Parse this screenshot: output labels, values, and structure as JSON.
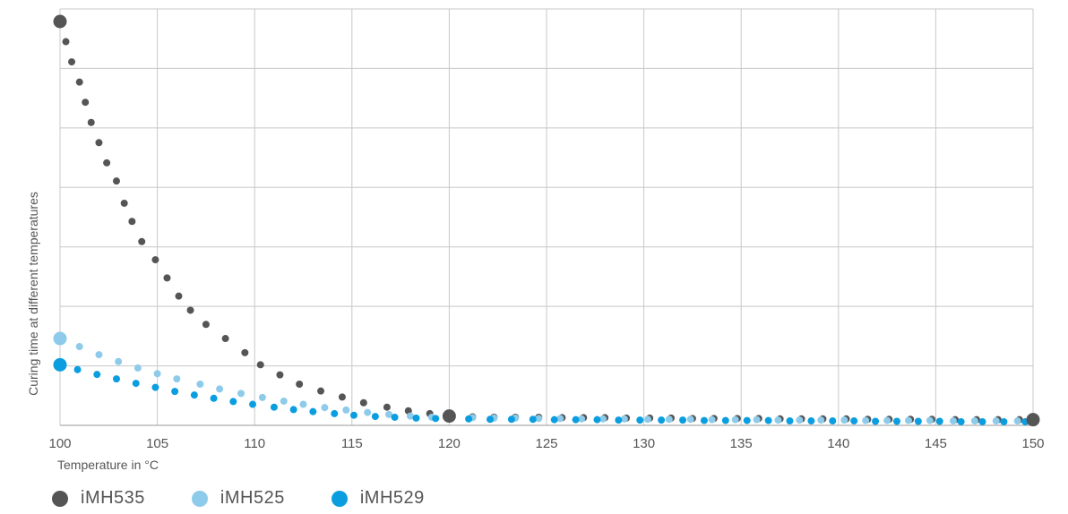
{
  "chart_data": {
    "type": "scatter",
    "title": "",
    "xlabel": "Temperature in °C",
    "ylabel": "Curing time at different temperatures",
    "xlim": [
      100,
      150
    ],
    "ylim": [
      0,
      100
    ],
    "x_ticks": [
      "100",
      "105",
      "110",
      "115",
      "120",
      "125",
      "130",
      "135",
      "140",
      "145",
      "150"
    ],
    "grid": true,
    "legend_position": "bottom-left",
    "series": [
      {
        "name": "iMH535",
        "color": "#555555",
        "points": [
          [
            100,
            100
          ],
          [
            100.3,
            95
          ],
          [
            100.6,
            90
          ],
          [
            101,
            85
          ],
          [
            101.3,
            80
          ],
          [
            101.6,
            75
          ],
          [
            102,
            70
          ],
          [
            102.4,
            65
          ],
          [
            102.9,
            60.5
          ],
          [
            103.3,
            55
          ],
          [
            103.7,
            50.5
          ],
          [
            104.2,
            45.5
          ],
          [
            104.9,
            41
          ],
          [
            105.5,
            36.5
          ],
          [
            106.1,
            32
          ],
          [
            106.7,
            28.5
          ],
          [
            107.5,
            25
          ],
          [
            108.5,
            21.5
          ],
          [
            109.5,
            18
          ],
          [
            110.3,
            15
          ],
          [
            111.3,
            12.5
          ],
          [
            112.3,
            10.2
          ],
          [
            113.4,
            8.5
          ],
          [
            114.5,
            7
          ],
          [
            115.6,
            5.6
          ],
          [
            116.8,
            4.5
          ],
          [
            117.9,
            3.6
          ],
          [
            119,
            2.9
          ],
          [
            120,
            2.3
          ],
          [
            121.2,
            2.1
          ],
          [
            122.3,
            2
          ],
          [
            123.4,
            2
          ],
          [
            124.6,
            2
          ],
          [
            125.8,
            1.9
          ],
          [
            126.9,
            1.9
          ],
          [
            128,
            1.9
          ],
          [
            129.1,
            1.8
          ],
          [
            130.3,
            1.8
          ],
          [
            131.4,
            1.8
          ],
          [
            132.5,
            1.7
          ],
          [
            133.6,
            1.7
          ],
          [
            134.8,
            1.7
          ],
          [
            135.9,
            1.7
          ],
          [
            137,
            1.6
          ],
          [
            138.1,
            1.6
          ],
          [
            139.2,
            1.6
          ],
          [
            140.4,
            1.6
          ],
          [
            141.5,
            1.5
          ],
          [
            142.6,
            1.5
          ],
          [
            143.7,
            1.5
          ],
          [
            144.8,
            1.5
          ],
          [
            146,
            1.4
          ],
          [
            147.1,
            1.4
          ],
          [
            148.2,
            1.4
          ],
          [
            149.3,
            1.4
          ],
          [
            150,
            1.4
          ]
        ]
      },
      {
        "name": "iMH525",
        "color": "#8ecbea",
        "points": [
          [
            100,
            21.5
          ],
          [
            101,
            19.5
          ],
          [
            102,
            17.5
          ],
          [
            103,
            15.8
          ],
          [
            104,
            14.2
          ],
          [
            105,
            12.8
          ],
          [
            106,
            11.5
          ],
          [
            107.2,
            10.2
          ],
          [
            108.2,
            9
          ],
          [
            109.3,
            7.9
          ],
          [
            110.4,
            6.9
          ],
          [
            111.5,
            6
          ],
          [
            112.5,
            5.2
          ],
          [
            113.6,
            4.4
          ],
          [
            114.7,
            3.8
          ],
          [
            115.8,
            3.2
          ],
          [
            116.9,
            2.7
          ],
          [
            118,
            2.3
          ],
          [
            119.1,
            2
          ],
          [
            120,
            2
          ],
          [
            121.2,
            1.9
          ],
          [
            122.3,
            1.8
          ],
          [
            123.4,
            1.8
          ],
          [
            124.6,
            1.7
          ],
          [
            125.7,
            1.7
          ],
          [
            126.8,
            1.6
          ],
          [
            127.9,
            1.6
          ],
          [
            129,
            1.6
          ],
          [
            130.2,
            1.5
          ],
          [
            131.3,
            1.5
          ],
          [
            132.4,
            1.5
          ],
          [
            133.5,
            1.4
          ],
          [
            134.7,
            1.4
          ],
          [
            135.8,
            1.4
          ],
          [
            136.9,
            1.3
          ],
          [
            138,
            1.3
          ],
          [
            139.1,
            1.3
          ],
          [
            140.3,
            1.3
          ],
          [
            141.4,
            1.2
          ],
          [
            142.5,
            1.2
          ],
          [
            143.6,
            1.2
          ],
          [
            144.7,
            1.2
          ],
          [
            145.9,
            1.1
          ],
          [
            147,
            1.1
          ],
          [
            148.1,
            1.1
          ],
          [
            149.2,
            1.1
          ],
          [
            150,
            1.1
          ]
        ]
      },
      {
        "name": "iMH529",
        "color": "#0a9ee0",
        "points": [
          [
            100,
            15
          ],
          [
            100.9,
            13.8
          ],
          [
            101.9,
            12.6
          ],
          [
            102.9,
            11.5
          ],
          [
            103.9,
            10.4
          ],
          [
            104.9,
            9.4
          ],
          [
            105.9,
            8.4
          ],
          [
            106.9,
            7.5
          ],
          [
            107.9,
            6.7
          ],
          [
            108.9,
            5.9
          ],
          [
            109.9,
            5.2
          ],
          [
            111,
            4.5
          ],
          [
            112,
            3.9
          ],
          [
            113,
            3.4
          ],
          [
            114.1,
            2.9
          ],
          [
            115.1,
            2.5
          ],
          [
            116.2,
            2.2
          ],
          [
            117.2,
            2
          ],
          [
            118.3,
            1.8
          ],
          [
            119.3,
            1.7
          ],
          [
            120,
            1.6
          ],
          [
            121,
            1.6
          ],
          [
            122.1,
            1.5
          ],
          [
            123.2,
            1.5
          ],
          [
            124.3,
            1.5
          ],
          [
            125.4,
            1.4
          ],
          [
            126.5,
            1.4
          ],
          [
            127.6,
            1.4
          ],
          [
            128.7,
            1.3
          ],
          [
            129.8,
            1.3
          ],
          [
            130.9,
            1.3
          ],
          [
            132,
            1.3
          ],
          [
            133.1,
            1.2
          ],
          [
            134.2,
            1.2
          ],
          [
            135.3,
            1.2
          ],
          [
            136.4,
            1.2
          ],
          [
            137.5,
            1.1
          ],
          [
            138.6,
            1.1
          ],
          [
            139.7,
            1.1
          ],
          [
            140.8,
            1.1
          ],
          [
            141.9,
            1
          ],
          [
            143,
            1
          ],
          [
            144.1,
            1
          ],
          [
            145.2,
            1
          ],
          [
            146.3,
            0.9
          ],
          [
            147.4,
            0.9
          ],
          [
            148.5,
            0.9
          ],
          [
            149.6,
            0.9
          ]
        ]
      }
    ],
    "highlight_points": [
      {
        "series": "iMH535",
        "x": 100,
        "y": 100
      },
      {
        "series": "iMH525",
        "x": 100,
        "y": 21.5
      },
      {
        "series": "iMH529",
        "x": 100,
        "y": 15
      },
      {
        "series": "iMH535",
        "x": 120,
        "y": 2.3
      },
      {
        "series": "iMH535",
        "x": 150,
        "y": 1.4
      }
    ]
  }
}
